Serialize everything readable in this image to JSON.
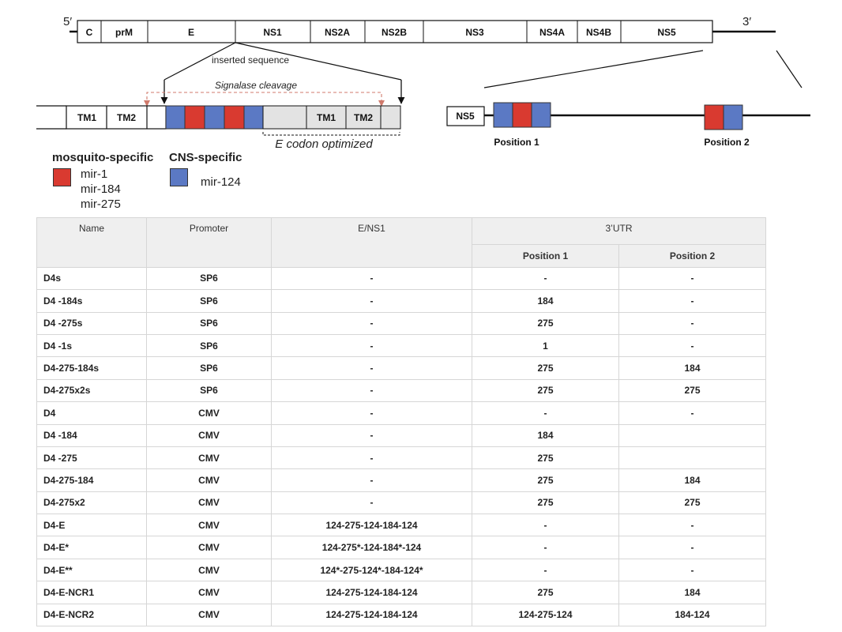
{
  "genome": {
    "five_prime": "5′",
    "three_prime": "3′",
    "segments": [
      "C",
      "prM",
      "E",
      "NS1",
      "NS2A",
      "NS2B",
      "NS3",
      "NS4A",
      "NS4B",
      "NS5"
    ]
  },
  "insert": {
    "label": "inserted sequence",
    "cleavage_label": "Signalase cleavage",
    "left_segments": [
      "TM1",
      "TM2"
    ],
    "optimized_segments": [
      "TM1",
      "TM2"
    ],
    "optimized_label": "E codon optimized"
  },
  "utr": {
    "ns5_label": "NS5",
    "position1_label": "Position 1",
    "position2_label": "Position 2"
  },
  "legend": {
    "mosquito_title": "mosquito-specific",
    "mosquito_items": [
      "mir-1",
      "mir-184",
      "mir-275"
    ],
    "cns_title": "CNS-specific",
    "cns_items": [
      "mir-124"
    ],
    "colors": {
      "mosquito": "#d93a30",
      "cns": "#5b79c4",
      "optimized": "#e3e3e3"
    }
  },
  "table": {
    "headers": {
      "name": "Name",
      "promoter": "Promoter",
      "ens1": "E/NS1",
      "utr": "3’UTR",
      "pos1": "Position 1",
      "pos2": "Position 2"
    },
    "rows": [
      [
        "D4s",
        "SP6",
        "-",
        "-",
        "-"
      ],
      [
        "D4 -184s",
        "SP6",
        "-",
        "184",
        "-"
      ],
      [
        "D4 -275s",
        "SP6",
        "-",
        "275",
        "-"
      ],
      [
        "D4 -1s",
        "SP6",
        "-",
        "1",
        "-"
      ],
      [
        "D4-275-184s",
        "SP6",
        "-",
        "275",
        "184"
      ],
      [
        "D4-275x2s",
        "SP6",
        "-",
        "275",
        "275"
      ],
      [
        "D4",
        "CMV",
        "-",
        "-",
        "-"
      ],
      [
        "D4 -184",
        "CMV",
        "-",
        "184",
        ""
      ],
      [
        "D4 -275",
        "CMV",
        "-",
        "275",
        ""
      ],
      [
        "D4-275-184",
        "CMV",
        "-",
        "275",
        "184"
      ],
      [
        "D4-275x2",
        "CMV",
        "-",
        "275",
        "275"
      ],
      [
        "D4-E",
        "CMV",
        "124-275-124-184-124",
        "-",
        "-"
      ],
      [
        "D4-E*",
        "CMV",
        "124-275*-124-184*-124",
        "-",
        "-"
      ],
      [
        "D4-E**",
        "CMV",
        "124*-275-124*-184-124*",
        "-",
        "-"
      ],
      [
        "D4-E-NCR1",
        "CMV",
        "124-275-124-184-124",
        "275",
        "184"
      ],
      [
        "D4-E-NCR2",
        "CMV",
        "124-275-124-184-124",
        "124-275-124",
        "184-124"
      ]
    ]
  }
}
